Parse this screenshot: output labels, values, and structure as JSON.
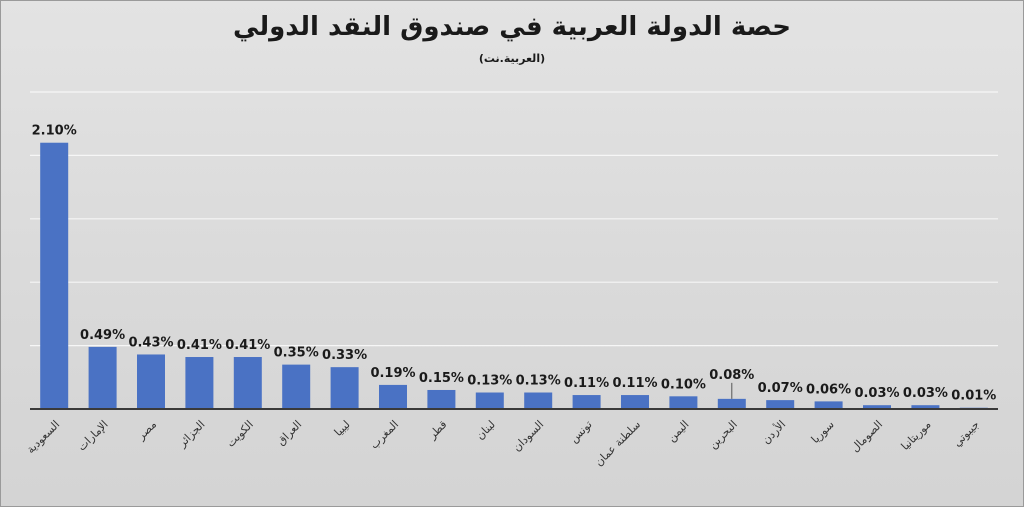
{
  "chart_data": {
    "type": "bar",
    "title": "حصة الدولة العربية في صندوق النقد الدولي",
    "subtitle": "(العربية.نت)",
    "categories": [
      "السعودية",
      "الإمارات",
      "مصر",
      "الجزائر",
      "الكويت",
      "العراق",
      "ليبيا",
      "المغرب",
      "قطر",
      "لبنان",
      "السودان",
      "تونس",
      "سلطنة عمان",
      "اليمن",
      "البحرين",
      "الأردن",
      "سوريا",
      "الصومال",
      "موريتانيا",
      "جيبوتي"
    ],
    "values": [
      2.1,
      0.49,
      0.43,
      0.41,
      0.41,
      0.35,
      0.33,
      0.19,
      0.15,
      0.13,
      0.13,
      0.11,
      0.11,
      0.1,
      0.08,
      0.07,
      0.06,
      0.03,
      0.03,
      0.01
    ],
    "value_labels": [
      "2.10%",
      "0.49%",
      "0.43%",
      "0.41%",
      "0.41%",
      "0.35%",
      "0.33%",
      "0.19%",
      "0.15%",
      "0.13%",
      "0.13%",
      "0.11%",
      "0.11%",
      "0.10%",
      "0.08%",
      "0.07%",
      "0.06%",
      "0.03%",
      "0.03%",
      "0.01%"
    ],
    "unit": "%",
    "ylim": [
      0,
      2.5
    ],
    "grid": true,
    "legend": "none",
    "colors": {
      "bar": "#4a72c4"
    }
  }
}
